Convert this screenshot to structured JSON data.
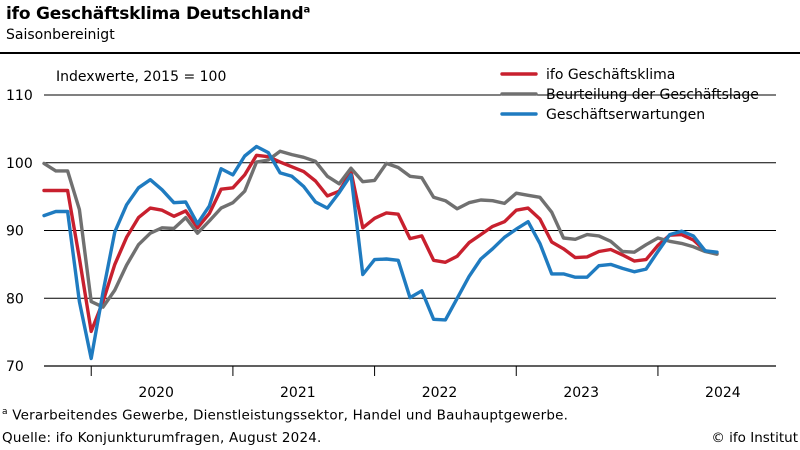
{
  "header": {
    "title": "ifo Geschäftsklima Deutschland",
    "title_marker": "a",
    "subtitle": "Saisonbereinigt"
  },
  "footer": {
    "footnote_marker": "a",
    "footnote": "Verarbeitendes Gewerbe, Dienstleistungssektor, Handel und Bauhauptgewerbe.",
    "source": "Quelle: ifo Konjunkturumfragen, August 2024.",
    "copyright": "© ifo Institut"
  },
  "chart_data": {
    "type": "line",
    "annotation": "Indexwerte, 2015 = 100",
    "ylim": [
      70,
      110
    ],
    "yticks": [
      70,
      80,
      90,
      100,
      110
    ],
    "grid": "horizontal",
    "legend_position": "top-right",
    "x_start": "2019-09",
    "x_end": "2024-08",
    "xlim_months": [
      "2019-09",
      "2024-11"
    ],
    "year_labels": [
      "2020",
      "2021",
      "2022",
      "2023",
      "2024"
    ],
    "series": [
      {
        "name": "ifo Geschäftsklima",
        "color": "#c8202e",
        "values": [
          95.9,
          95.9,
          95.9,
          85.9,
          75.1,
          79.5,
          85.0,
          89.0,
          91.9,
          93.3,
          93.0,
          92.1,
          92.9,
          90.4,
          92.5,
          96.1,
          96.3,
          98.2,
          101.1,
          100.9,
          100.1,
          99.4,
          98.7,
          97.3,
          95.1,
          95.8,
          98.7,
          90.4,
          91.8,
          92.6,
          92.4,
          88.8,
          89.2,
          85.6,
          85.3,
          86.2,
          88.2,
          89.4,
          90.6,
          91.3,
          93.0,
          93.3,
          91.7,
          88.3,
          87.3,
          86.0,
          86.1,
          86.9,
          87.2,
          86.4,
          85.5,
          85.7,
          87.8,
          89.3,
          89.4,
          88.6,
          87.0,
          86.6
        ]
      },
      {
        "name": "Beurteilung der Geschäftslage",
        "color": "#707070",
        "values": [
          99.9,
          98.8,
          98.8,
          93.1,
          79.5,
          78.7,
          81.2,
          84.9,
          87.9,
          89.6,
          90.4,
          90.3,
          91.9,
          89.6,
          91.4,
          93.3,
          94.1,
          95.8,
          100.1,
          100.4,
          101.7,
          101.2,
          100.8,
          100.2,
          98.0,
          96.9,
          99.2,
          97.2,
          97.4,
          99.9,
          99.3,
          98.0,
          97.8,
          94.9,
          94.4,
          93.2,
          94.1,
          94.5,
          94.4,
          94.0,
          95.5,
          95.2,
          94.9,
          92.7,
          88.9,
          88.7,
          89.4,
          89.2,
          88.4,
          86.9,
          86.8,
          87.9,
          88.9,
          88.4,
          88.1,
          87.6,
          86.9,
          86.5
        ]
      },
      {
        "name": "Geschäftserwartungen",
        "color": "#1f7bc0",
        "values": [
          92.2,
          92.8,
          92.8,
          79.5,
          71.1,
          80.9,
          89.8,
          93.8,
          96.3,
          97.5,
          96.0,
          94.1,
          94.2,
          91.0,
          93.6,
          99.1,
          98.2,
          101.0,
          102.4,
          101.5,
          98.5,
          98.0,
          96.5,
          94.2,
          93.3,
          95.6,
          98.2,
          83.5,
          85.7,
          85.8,
          85.6,
          80.1,
          81.1,
          76.9,
          76.8,
          80.0,
          83.2,
          85.8,
          87.3,
          89.0,
          90.2,
          91.3,
          88.1,
          83.6,
          83.6,
          83.1,
          83.1,
          84.8,
          85.0,
          84.4,
          83.9,
          84.3,
          86.9,
          89.4,
          89.9,
          89.2,
          87.0,
          86.8
        ]
      }
    ]
  }
}
